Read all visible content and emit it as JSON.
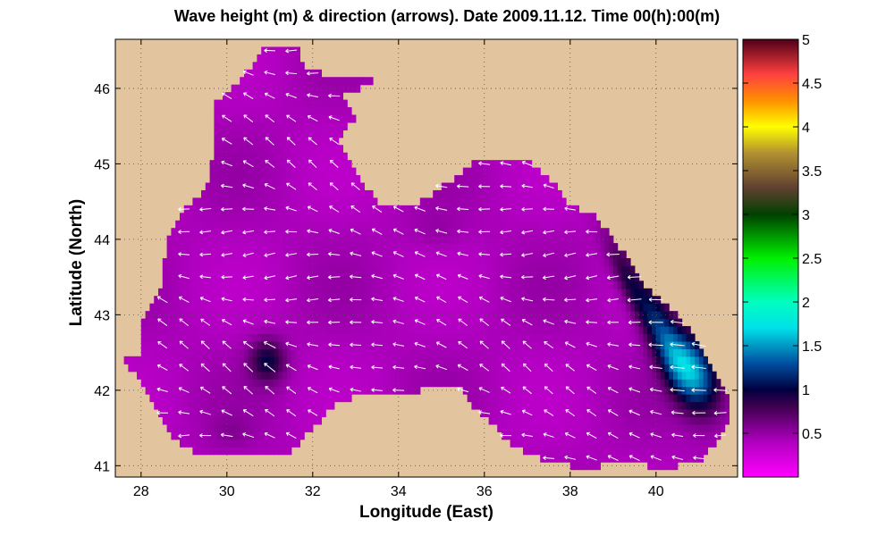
{
  "chart_data": {
    "type": "heatmap",
    "title": "Wave height (m) & direction (arrows). Date 2009.11.12. Time 00(h):00(m)",
    "xlabel": "Longitude (East)",
    "ylabel": "Latitude (North)",
    "xlim": [
      27.4,
      41.9
    ],
    "ylim": [
      40.85,
      46.65
    ],
    "xticks": [
      28,
      30,
      32,
      34,
      36,
      38,
      40
    ],
    "yticks": [
      41,
      42,
      43,
      44,
      45,
      46
    ],
    "grid": true,
    "land_color": "#e2c49f",
    "colorbar": {
      "range": [
        0,
        5
      ],
      "ticks": [
        0.5,
        1,
        1.5,
        2,
        2.5,
        3,
        3.5,
        4,
        4.5,
        5
      ],
      "colormap": [
        {
          "v": 0.0,
          "c": "#ff00ff"
        },
        {
          "v": 0.4,
          "c": "#b000c0"
        },
        {
          "v": 0.8,
          "c": "#400050"
        },
        {
          "v": 1.0,
          "c": "#000040"
        },
        {
          "v": 1.3,
          "c": "#0050a0"
        },
        {
          "v": 1.7,
          "c": "#00e0e8"
        },
        {
          "v": 2.0,
          "c": "#00ffc0"
        },
        {
          "v": 2.5,
          "c": "#00f000"
        },
        {
          "v": 3.0,
          "c": "#004000"
        },
        {
          "v": 3.3,
          "c": "#604030"
        },
        {
          "v": 3.7,
          "c": "#b09030"
        },
        {
          "v": 4.0,
          "c": "#ffff00"
        },
        {
          "v": 4.3,
          "c": "#ff9000"
        },
        {
          "v": 4.6,
          "c": "#ff4040"
        },
        {
          "v": 5.0,
          "c": "#500018"
        }
      ]
    },
    "sea_outline": [
      [
        27.5,
        42.45
      ],
      [
        28.0,
        42.5
      ],
      [
        28.05,
        43.0
      ],
      [
        28.5,
        43.45
      ],
      [
        28.6,
        43.95
      ],
      [
        29.0,
        44.4
      ],
      [
        29.5,
        44.65
      ],
      [
        29.7,
        45.2
      ],
      [
        29.7,
        45.8
      ],
      [
        30.3,
        46.1
      ],
      [
        30.8,
        46.5
      ],
      [
        31.2,
        46.6
      ],
      [
        31.6,
        46.6
      ],
      [
        31.8,
        46.3
      ],
      [
        32.4,
        46.15
      ],
      [
        33.2,
        46.2
      ],
      [
        33.5,
        46.05
      ],
      [
        32.7,
        45.95
      ],
      [
        33.0,
        45.6
      ],
      [
        32.6,
        45.35
      ],
      [
        33.0,
        44.9
      ],
      [
        33.3,
        44.65
      ],
      [
        33.6,
        44.4
      ],
      [
        34.0,
        44.45
      ],
      [
        34.4,
        44.45
      ],
      [
        35.0,
        44.7
      ],
      [
        35.4,
        44.85
      ],
      [
        35.8,
        45.05
      ],
      [
        36.2,
        45.0
      ],
      [
        36.6,
        45.1
      ],
      [
        37.0,
        45.05
      ],
      [
        37.3,
        44.9
      ],
      [
        37.6,
        44.75
      ],
      [
        38.0,
        44.45
      ],
      [
        38.6,
        44.3
      ],
      [
        39.2,
        43.85
      ],
      [
        39.8,
        43.35
      ],
      [
        40.4,
        43.05
      ],
      [
        41.0,
        42.65
      ],
      [
        41.5,
        42.15
      ],
      [
        41.75,
        41.9
      ],
      [
        41.65,
        41.5
      ],
      [
        41.1,
        41.1
      ],
      [
        40.2,
        40.95
      ],
      [
        39.5,
        41.05
      ],
      [
        38.7,
        41.0
      ],
      [
        38.0,
        41.0
      ],
      [
        37.3,
        41.1
      ],
      [
        36.6,
        41.3
      ],
      [
        36.3,
        41.5
      ],
      [
        35.8,
        41.75
      ],
      [
        35.4,
        42.05
      ],
      [
        34.9,
        42.05
      ],
      [
        34.0,
        41.95
      ],
      [
        33.4,
        42.0
      ],
      [
        32.6,
        41.85
      ],
      [
        32.0,
        41.5
      ],
      [
        31.5,
        41.2
      ],
      [
        30.3,
        41.15
      ],
      [
        29.8,
        41.15
      ],
      [
        29.2,
        41.2
      ],
      [
        28.7,
        41.4
      ],
      [
        28.4,
        41.65
      ],
      [
        28.1,
        42.05
      ],
      [
        27.5,
        42.45
      ]
    ],
    "hotspots": [
      {
        "lon": 40.85,
        "lat": 42.28,
        "ru": 0.7,
        "rv": 0.42,
        "deg": -35,
        "amp": 1.1
      },
      {
        "lon": 40.1,
        "lat": 42.85,
        "ru": 0.95,
        "rv": 0.32,
        "deg": -55,
        "amp": 0.65
      },
      {
        "lon": 39.35,
        "lat": 43.45,
        "ru": 0.75,
        "rv": 0.22,
        "deg": -50,
        "amp": 0.45
      },
      {
        "lon": 30.95,
        "lat": 42.4,
        "ru": 0.42,
        "rv": 0.28,
        "deg": 0,
        "amp": 0.55
      },
      {
        "lon": 34.9,
        "lat": 44.1,
        "ru": 0.6,
        "rv": 0.25,
        "deg": 0,
        "amp": 0.08
      },
      {
        "lon": 30.1,
        "lat": 41.45,
        "ru": 0.5,
        "rv": 0.2,
        "deg": 0,
        "amp": 0.1
      }
    ],
    "base_value": 0.42,
    "arrows": {
      "dlon": 0.5,
      "dlat": 0.3,
      "mean_direction_deg": 165,
      "color": "#ffffff"
    }
  }
}
